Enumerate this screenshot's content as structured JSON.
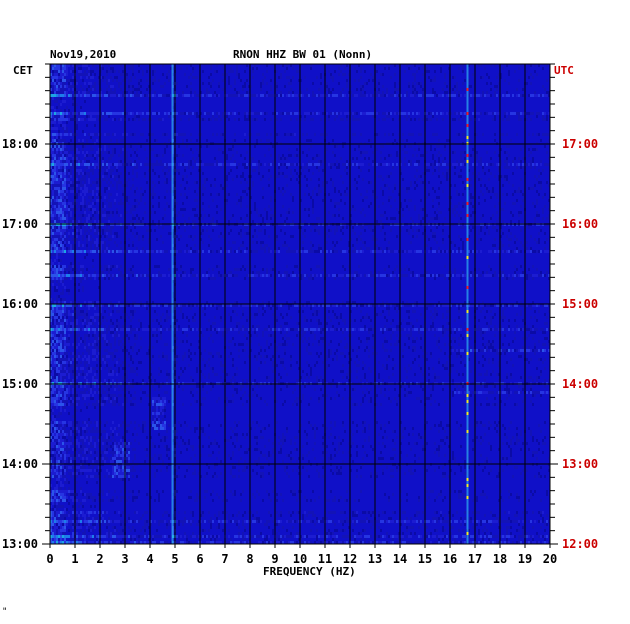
{
  "header": {
    "date": "Nov19,2010",
    "station": "RNON HHZ BW 01 (Nonn)",
    "left_zone": "CET",
    "right_zone": "UTC"
  },
  "footer": {
    "corner_mark": "\""
  },
  "colors": {
    "plot_background": "#1010c8",
    "grid": "#000000",
    "utc_label": "#cc0000"
  },
  "chart_data": {
    "type": "heatmap",
    "title": "RNON HHZ BW 01 (Nonn)",
    "xlabel": "FREQUENCY (HZ)",
    "ylabel": "",
    "xlim": [
      0,
      20
    ],
    "x_ticks": [
      "0",
      "1",
      "2",
      "3",
      "4",
      "5",
      "6",
      "7",
      "8",
      "9",
      "10",
      "11",
      "12",
      "13",
      "14",
      "15",
      "16",
      "17",
      "18",
      "19",
      "20"
    ],
    "left_axis": {
      "zone": "CET",
      "ticks": [
        "13:00",
        "14:00",
        "15:00",
        "16:00",
        "17:00",
        "18:00"
      ]
    },
    "right_axis": {
      "zone": "UTC",
      "ticks": [
        "12:00",
        "13:00",
        "14:00",
        "15:00",
        "16:00",
        "17:00"
      ]
    },
    "time_range_cet": [
      "13:00",
      "18:48"
    ],
    "grid": true,
    "notable_lines_hz": [
      4.9,
      16.7
    ]
  }
}
